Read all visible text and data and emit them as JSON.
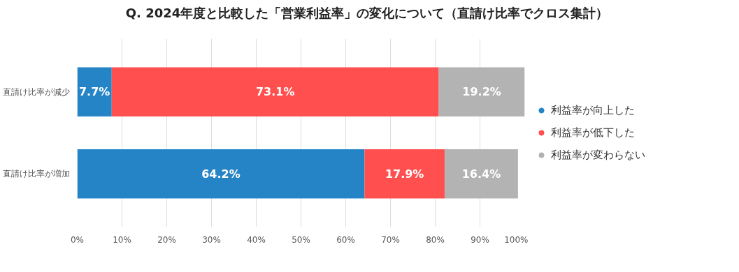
{
  "chart_data": {
    "type": "bar",
    "orientation": "horizontal",
    "stacked": true,
    "title": "Q. 2024年度と比較した「営業利益率」の変化について（直請け比率でクロス集計）",
    "categories": [
      "直請け比率が減少",
      "直請け比率が増加"
    ],
    "series": [
      {
        "name": "利益率が向上した",
        "color": "#2584c6",
        "values": [
          7.7,
          64.2
        ],
        "value_labels": [
          "7.7%",
          "64.2%"
        ]
      },
      {
        "name": "利益率が低下した",
        "color": "#ff4f4f",
        "values": [
          73.1,
          17.9
        ],
        "value_labels": [
          "73.1%",
          "17.9%"
        ]
      },
      {
        "name": "利益率が変わらない",
        "color": "#b3b3b4",
        "values": [
          19.2,
          16.4
        ],
        "value_labels": [
          "19.2%",
          "16.4%"
        ]
      }
    ],
    "xlim": [
      0,
      100
    ],
    "xticks": [
      {
        "value": 0,
        "label": "0%"
      },
      {
        "value": 10,
        "label": "10%"
      },
      {
        "value": 20,
        "label": "20%"
      },
      {
        "value": 30,
        "label": "30%"
      },
      {
        "value": 40,
        "label": "40%"
      },
      {
        "value": 50,
        "label": "50%"
      },
      {
        "value": 60,
        "label": "60%"
      },
      {
        "value": 70,
        "label": "70%"
      },
      {
        "value": 80,
        "label": "80%"
      },
      {
        "value": 90,
        "label": "90%"
      },
      {
        "value": 100,
        "label": "100%"
      }
    ],
    "grid": "x",
    "legend": "right",
    "marker": "circle"
  }
}
